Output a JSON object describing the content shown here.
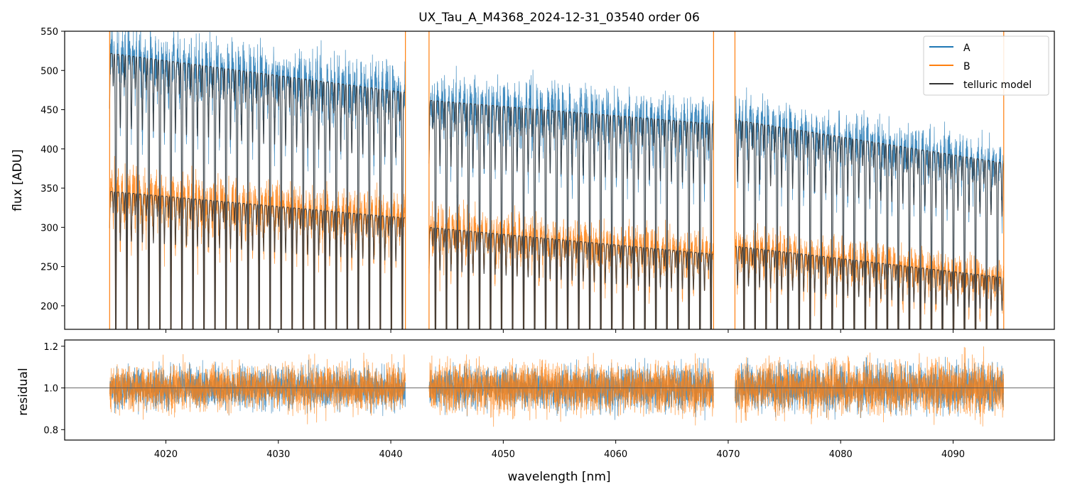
{
  "colors": {
    "A": "#1f77b4",
    "B": "#ff7f0e",
    "model": "#333333",
    "residual_line": "#555555"
  },
  "chart_data": [
    {
      "id": "top",
      "type": "line",
      "title": "UX_Tau_A_M4368_2024-12-31_03540  order 06",
      "xlabel": "",
      "ylabel": "flux [ADU]",
      "xlim": [
        4011,
        4099
      ],
      "ylim": [
        170,
        550
      ],
      "yticks": [
        200,
        250,
        300,
        350,
        400,
        450,
        500,
        550
      ],
      "xticks": [
        4020,
        4030,
        4040,
        4050,
        4060,
        4070,
        4080,
        4090
      ],
      "legend": {
        "placement": "top-right",
        "entries": [
          {
            "label": "A",
            "color_key": "A"
          },
          {
            "label": "B",
            "color_key": "B"
          },
          {
            "label": "telluric model",
            "color_key": "model"
          }
        ]
      },
      "segments": [
        {
          "x_start": 4015.0,
          "x_end": 4041.3,
          "A_continuum": [
            522,
            472
          ],
          "B_continuum": [
            346,
            312
          ]
        },
        {
          "x_start": 4043.4,
          "x_end": 4068.7,
          "A_continuum": [
            462,
            432
          ],
          "B_continuum": [
            300,
            266
          ]
        },
        {
          "x_start": 4070.6,
          "x_end": 4094.5,
          "A_continuum": [
            437,
            382
          ],
          "B_continuum": [
            276,
            236
          ]
        }
      ],
      "telluric_line_spacing_nm": 0.98,
      "spikes_x": [
        4015.0,
        4041.3,
        4043.4,
        4068.7,
        4070.6,
        4094.5
      ]
    },
    {
      "id": "bottom",
      "type": "line",
      "title": "",
      "xlabel": "wavelength [nm]",
      "ylabel": "residual",
      "xlim": [
        4011,
        4099
      ],
      "ylim": [
        0.75,
        1.23
      ],
      "yticks": [
        0.8,
        1.0,
        1.2
      ],
      "xticks": [
        4020,
        4030,
        4040,
        4050,
        4060,
        4070,
        4080,
        4090
      ],
      "reference_line": 1.0,
      "segments": [
        {
          "x_start": 4015.0,
          "x_end": 4041.3
        },
        {
          "x_start": 4043.4,
          "x_end": 4068.7
        },
        {
          "x_start": 4070.6,
          "x_end": 4094.5
        }
      ]
    }
  ]
}
